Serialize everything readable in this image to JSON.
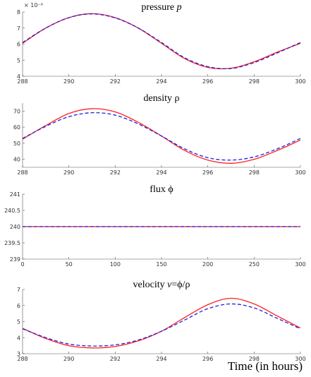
{
  "xlabel": "Time (in hours)",
  "chart_data": [
    {
      "type": "line",
      "title": "pressure p",
      "title_parts": [
        "pressure ",
        "p"
      ],
      "exponent_label": "× 10⁻⁶",
      "x": [
        288,
        289,
        290,
        291,
        292,
        293,
        294,
        295,
        296,
        297,
        298,
        299,
        300
      ],
      "xlim": [
        288,
        300
      ],
      "ylim": [
        4,
        8
      ],
      "xticks": [
        288,
        290,
        292,
        294,
        296,
        298,
        300
      ],
      "yticks": [
        4,
        5,
        6,
        7,
        8
      ],
      "series": [
        {
          "color": "#ff2020",
          "dash": "solid",
          "values": [
            6.05,
            7.0,
            7.65,
            7.9,
            7.65,
            7.0,
            6.05,
            5.1,
            4.55,
            4.5,
            4.9,
            5.5,
            6.05
          ]
        },
        {
          "color": "#2020e0",
          "dash": "dashed",
          "values": [
            6.1,
            7.0,
            7.65,
            7.88,
            7.63,
            7.0,
            6.1,
            5.15,
            4.6,
            4.48,
            4.85,
            5.45,
            6.1
          ]
        }
      ]
    },
    {
      "type": "line",
      "title": "density ρ",
      "x": [
        288,
        289,
        290,
        291,
        292,
        293,
        294,
        295,
        296,
        297,
        298,
        299,
        300
      ],
      "xlim": [
        288,
        300
      ],
      "ylim": [
        35,
        75
      ],
      "xticks": [
        288,
        290,
        292,
        294,
        296,
        298,
        300
      ],
      "yticks": [
        40,
        50,
        60,
        70
      ],
      "series": [
        {
          "color": "#ff2020",
          "dash": "solid",
          "values": [
            52.5,
            61,
            68.5,
            71.5,
            69.5,
            63,
            54.5,
            45.5,
            39.5,
            37.5,
            40,
            45.5,
            52
          ]
        },
        {
          "color": "#2020e0",
          "dash": "dashed",
          "values": [
            53,
            60.5,
            66.5,
            69,
            67.5,
            62,
            54.5,
            46.5,
            41,
            39.5,
            41.5,
            46.5,
            53
          ]
        }
      ]
    },
    {
      "type": "line",
      "title": "flux ϕ",
      "x": [
        0,
        300
      ],
      "xlim": [
        0,
        300
      ],
      "ylim": [
        239,
        241
      ],
      "xticks": [
        0,
        50,
        100,
        150,
        200,
        250,
        300
      ],
      "yticks": [
        239,
        239.5,
        240,
        240.5,
        241
      ],
      "series": [
        {
          "color": "#ff2020",
          "dash": "solid",
          "values": [
            240,
            240
          ]
        },
        {
          "color": "#2020e0",
          "dash": "dashed",
          "values": [
            240,
            240
          ]
        }
      ]
    },
    {
      "type": "line",
      "title": "velocity v=ϕ/ρ",
      "title_parts": [
        "velocity  ",
        "v",
        "=ϕ/ρ"
      ],
      "x": [
        288,
        289,
        290,
        291,
        292,
        293,
        294,
        295,
        296,
        297,
        298,
        299,
        300
      ],
      "xlim": [
        288,
        300
      ],
      "ylim": [
        3,
        7
      ],
      "xticks": [
        288,
        290,
        292,
        294,
        296,
        298,
        300
      ],
      "yticks": [
        3,
        4,
        5,
        6,
        7
      ],
      "series": [
        {
          "color": "#ff2020",
          "dash": "solid",
          "values": [
            4.58,
            3.95,
            3.5,
            3.36,
            3.45,
            3.8,
            4.4,
            5.25,
            6.05,
            6.45,
            6.1,
            5.35,
            4.6
          ]
        },
        {
          "color": "#2020e0",
          "dash": "dashed",
          "values": [
            4.55,
            4.0,
            3.6,
            3.48,
            3.55,
            3.85,
            4.4,
            5.1,
            5.8,
            6.1,
            5.85,
            5.2,
            4.55
          ]
        }
      ]
    }
  ]
}
